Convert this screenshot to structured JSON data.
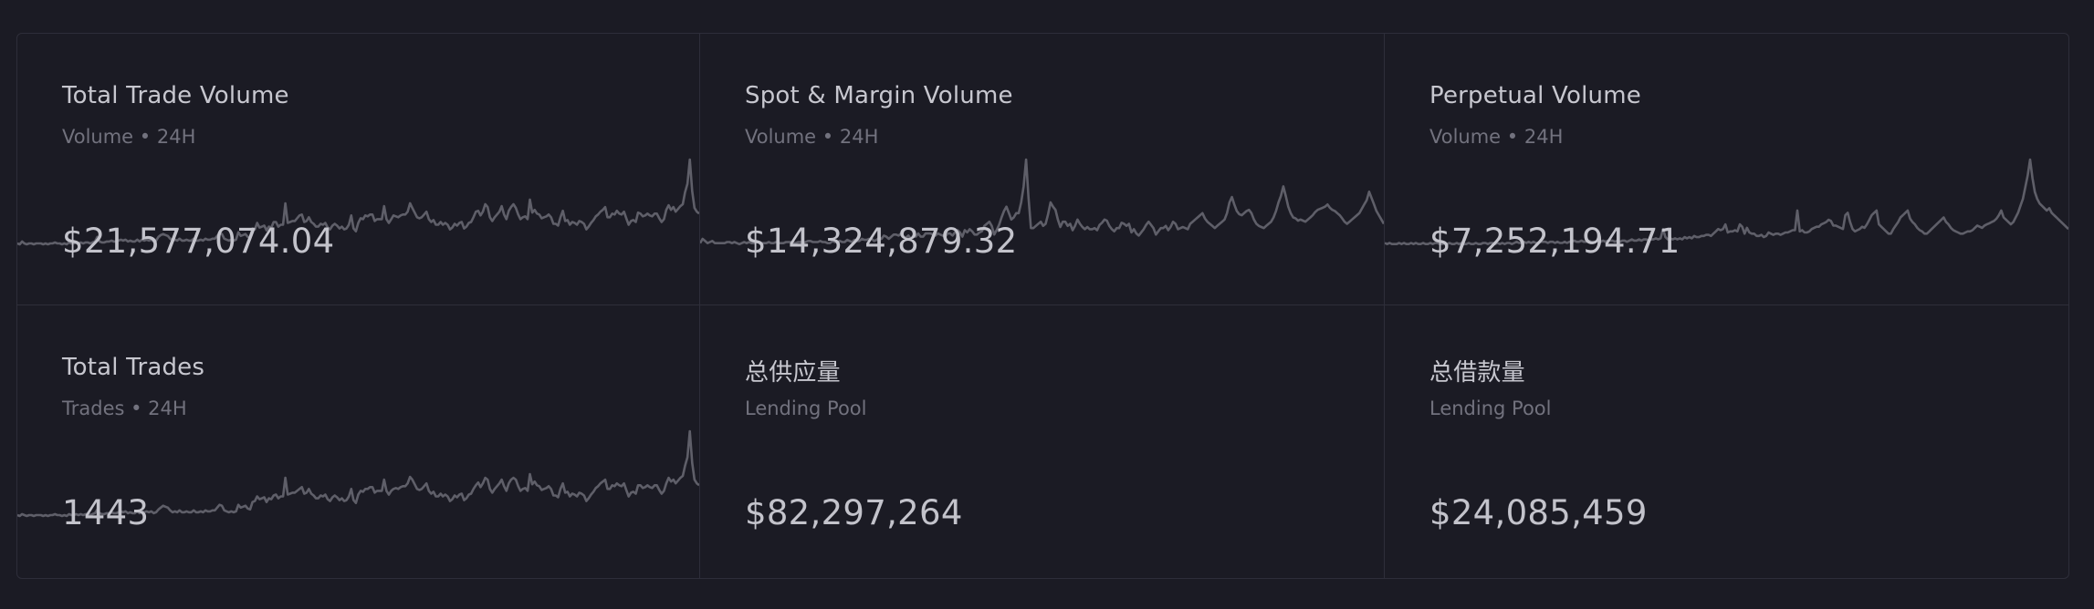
{
  "colors": {
    "background": "#1b1b24",
    "border": "#2e2e3a",
    "title": "#c7c7cf",
    "subtitle": "#72727e",
    "value": "#c3c3cb",
    "sparkline": "#5f5f69"
  },
  "cards": [
    {
      "title": "Total Trade Volume",
      "subtitle": "Volume • 24H",
      "value": "$21,577,074.04",
      "sparkline": [
        2,
        1,
        4,
        2,
        1,
        2,
        2,
        1,
        2,
        2,
        2,
        1,
        2,
        1,
        2,
        2,
        3,
        2,
        2,
        1,
        2,
        1,
        3,
        2,
        2,
        3,
        2,
        3,
        2,
        3,
        3,
        2,
        3,
        4,
        9,
        4,
        3,
        3,
        4,
        4,
        5,
        4,
        4,
        5,
        6,
        5,
        6,
        4,
        5,
        4,
        4,
        6,
        4,
        6,
        5,
        6,
        5,
        6,
        4,
        5,
        9,
        11,
        12,
        11,
        10,
        7,
        5,
        6,
        5,
        7,
        5,
        5,
        6,
        5,
        5,
        7,
        5,
        5,
        6,
        5,
        7,
        6,
        6,
        7,
        7,
        10,
        13,
        12,
        7,
        6,
        5,
        6,
        5,
        6,
        14,
        10,
        11,
        12,
        9,
        8,
        18,
        17,
        24,
        19,
        20,
        21,
        16,
        20,
        19,
        25,
        25,
        20,
        22,
        22,
        45,
        24,
        25,
        26,
        26,
        29,
        32,
        33,
        25,
        26,
        30,
        25,
        23,
        20,
        20,
        23,
        22,
        24,
        19,
        17,
        21,
        23,
        21,
        18,
        20,
        17,
        18,
        22,
        32,
        18,
        15,
        24,
        29,
        28,
        32,
        31,
        33,
        33,
        26,
        28,
        28,
        28,
        42,
        28,
        24,
        28,
        32,
        31,
        30,
        32,
        33,
        33,
        36,
        45,
        40,
        35,
        30,
        29,
        30,
        33,
        36,
        28,
        25,
        27,
        22,
        22,
        25,
        22,
        24,
        22,
        17,
        19,
        23,
        21,
        24,
        25,
        18,
        20,
        24,
        25,
        30,
        36,
        37,
        32,
        36,
        44,
        41,
        30,
        26,
        30,
        33,
        36,
        42,
        33,
        28,
        37,
        41,
        44,
        40,
        33,
        28,
        30,
        31,
        28,
        49,
        35,
        38,
        34,
        33,
        29,
        30,
        31,
        33,
        30,
        23,
        23,
        21,
        30,
        37,
        26,
        27,
        22,
        25,
        24,
        22,
        26,
        25,
        23,
        17,
        20,
        24,
        27,
        31,
        33,
        36,
        38,
        41,
        30,
        30,
        34,
        33,
        37,
        34,
        33,
        36,
        29,
        22,
        26,
        27,
        25,
        35,
        34,
        31,
        32,
        34,
        32,
        31,
        34,
        34,
        29,
        25,
        28,
        38,
        43,
        38,
        41,
        36,
        39,
        42,
        44,
        57,
        66,
        92,
        58,
        40,
        36,
        34
      ]
    },
    {
      "title": "Spot & Margin Volume",
      "subtitle": "Volume • 24H",
      "value": "$14,324,879.32",
      "sparkline": [
        2,
        6,
        4,
        2,
        3,
        4,
        2,
        2,
        2,
        2,
        2,
        3,
        3,
        2,
        3,
        2,
        1,
        2,
        3,
        2,
        3,
        2,
        2,
        3,
        3,
        2,
        2,
        2,
        3,
        2,
        2,
        3,
        2,
        2,
        2,
        3,
        3,
        3,
        2,
        2,
        3,
        3,
        2,
        3,
        4,
        4,
        3,
        3,
        3,
        4,
        3,
        3,
        2,
        2,
        4,
        3,
        3,
        4,
        3,
        3,
        5,
        4,
        3,
        5,
        4,
        4,
        6,
        5,
        5,
        6,
        6,
        4,
        5,
        7,
        6,
        9,
        8,
        6,
        8,
        10,
        10,
        9,
        11,
        8,
        7,
        9,
        6,
        9,
        8,
        11,
        8,
        8,
        11,
        11,
        11,
        10,
        9,
        11,
        10,
        9,
        8,
        11,
        11,
        9,
        12,
        14,
        12,
        8,
        14,
        12,
        15,
        13,
        10,
        10,
        12,
        13,
        18,
        20,
        22,
        18,
        10,
        14,
        19,
        26,
        32,
        36,
        30,
        24,
        26,
        30,
        30,
        40,
        55,
        80,
        45,
        16,
        16,
        18,
        20,
        22,
        18,
        20,
        29,
        40,
        36,
        33,
        24,
        17,
        22,
        22,
        18,
        20,
        14,
        18,
        24,
        20,
        17,
        15,
        17,
        15,
        15,
        16,
        14,
        19,
        21,
        24,
        23,
        18,
        15,
        13,
        16,
        16,
        21,
        20,
        18,
        20,
        12,
        15,
        11,
        9,
        12,
        15,
        19,
        22,
        19,
        16,
        10,
        13,
        16,
        16,
        18,
        14,
        17,
        22,
        20,
        15,
        16,
        17,
        16,
        15,
        20,
        22,
        24,
        26,
        28,
        30,
        25,
        22,
        20,
        18,
        16,
        18,
        20,
        22,
        24,
        30,
        40,
        45,
        38,
        32,
        29,
        28,
        30,
        32,
        33,
        30,
        24,
        20,
        18,
        17,
        16,
        18,
        20,
        22,
        26,
        32,
        40,
        46,
        55,
        46,
        36,
        30,
        26,
        25,
        23,
        24,
        23,
        22,
        24,
        26,
        28,
        31,
        33,
        34,
        35,
        36,
        38,
        35,
        33,
        32,
        30,
        28,
        25,
        22,
        20,
        22,
        24,
        26,
        28,
        30,
        34,
        38,
        42,
        50,
        44,
        38,
        32,
        28,
        24,
        20
      ]
    },
    {
      "title": "Perpetual Volume",
      "subtitle": "Volume • 24H",
      "value": "$7,252,194.71",
      "sparkline": [
        2,
        1,
        2,
        1,
        1,
        1,
        2,
        1,
        2,
        1,
        1,
        2,
        1,
        2,
        1,
        1,
        2,
        1,
        1,
        2,
        1,
        2,
        2,
        1,
        1,
        2,
        1,
        2,
        1,
        1,
        2,
        1,
        2,
        1,
        1,
        2,
        1,
        1,
        2,
        1,
        1,
        2,
        2,
        1,
        2,
        2,
        1,
        2,
        1,
        2,
        1,
        2,
        2,
        1,
        2,
        3,
        2,
        2,
        3,
        2,
        3,
        2,
        3,
        2,
        2,
        3,
        3,
        3,
        2,
        3,
        3,
        2,
        3,
        2,
        2,
        3,
        2,
        3,
        3,
        4,
        3,
        3,
        4,
        3,
        3,
        4,
        3,
        3,
        3,
        4,
        3,
        4,
        3,
        4,
        4,
        4,
        3,
        4,
        3,
        4,
        4,
        3,
        4,
        5,
        4,
        4,
        5,
        4,
        5,
        5,
        4,
        5,
        5,
        6,
        5,
        6,
        14,
        7,
        5,
        6,
        5,
        6,
        5,
        6,
        5,
        7,
        6,
        7,
        6,
        8,
        7,
        7,
        8,
        8,
        9,
        9,
        8,
        10,
        12,
        14,
        13,
        14,
        18,
        11,
        12,
        12,
        13,
        12,
        18,
        16,
        10,
        15,
        11,
        10,
        10,
        8,
        8,
        9,
        7,
        8,
        11,
        10,
        9,
        10,
        10,
        9,
        10,
        11,
        11,
        12,
        13,
        13,
        30,
        12,
        13,
        11,
        11,
        12,
        14,
        15,
        16,
        16,
        18,
        19,
        20,
        22,
        21,
        17,
        17,
        16,
        15,
        14,
        26,
        28,
        20,
        14,
        12,
        13,
        14,
        16,
        15,
        18,
        22,
        26,
        28,
        30,
        18,
        16,
        14,
        12,
        10,
        10,
        14,
        17,
        20,
        24,
        26,
        28,
        30,
        23,
        20,
        18,
        15,
        13,
        12,
        10,
        10,
        12,
        14,
        16,
        18,
        20,
        22,
        24,
        20,
        18,
        15,
        13,
        12,
        11,
        10,
        10,
        11,
        12,
        12,
        13,
        15,
        17,
        16,
        15,
        17,
        18,
        19,
        20,
        21,
        23,
        26,
        30,
        24,
        22,
        20,
        18,
        20,
        24,
        28,
        34,
        40,
        50,
        60,
        74,
        58,
        46,
        40,
        36,
        34,
        32,
        30,
        32,
        28,
        26,
        24,
        22,
        20,
        18,
        16,
        14
      ]
    },
    {
      "title": "Total Trades",
      "subtitle": "Trades • 24H",
      "value": "1443",
      "sparkline": [
        2,
        1,
        3,
        2,
        1,
        2,
        2,
        1,
        2,
        2,
        2,
        1,
        2,
        1,
        2,
        2,
        3,
        2,
        2,
        1,
        2,
        1,
        3,
        2,
        2,
        3,
        2,
        3,
        2,
        3,
        3,
        2,
        3,
        4,
        8,
        4,
        3,
        3,
        4,
        4,
        5,
        4,
        4,
        5,
        6,
        5,
        6,
        4,
        5,
        4,
        4,
        6,
        4,
        6,
        5,
        6,
        5,
        6,
        4,
        5,
        8,
        10,
        12,
        11,
        10,
        7,
        5,
        6,
        5,
        7,
        5,
        5,
        6,
        5,
        5,
        7,
        5,
        5,
        6,
        5,
        7,
        6,
        6,
        7,
        7,
        10,
        13,
        12,
        7,
        6,
        5,
        6,
        5,
        6,
        13,
        10,
        11,
        12,
        9,
        8,
        16,
        17,
        22,
        19,
        20,
        21,
        16,
        20,
        19,
        23,
        24,
        20,
        22,
        22,
        42,
        24,
        25,
        26,
        26,
        28,
        30,
        32,
        25,
        26,
        30,
        25,
        23,
        20,
        20,
        23,
        22,
        24,
        19,
        17,
        21,
        23,
        21,
        18,
        20,
        17,
        18,
        22,
        30,
        18,
        15,
        24,
        28,
        27,
        30,
        30,
        32,
        32,
        26,
        28,
        28,
        28,
        40,
        28,
        24,
        28,
        30,
        31,
        30,
        32,
        33,
        33,
        36,
        43,
        40,
        35,
        30,
        29,
        30,
        33,
        36,
        28,
        25,
        27,
        22,
        22,
        25,
        22,
        24,
        22,
        17,
        19,
        23,
        21,
        24,
        25,
        18,
        20,
        24,
        25,
        30,
        34,
        37,
        32,
        36,
        42,
        40,
        30,
        26,
        30,
        33,
        36,
        40,
        33,
        28,
        36,
        40,
        42,
        40,
        33,
        28,
        30,
        31,
        28,
        46,
        35,
        38,
        34,
        33,
        29,
        30,
        31,
        33,
        30,
        23,
        23,
        21,
        30,
        36,
        26,
        27,
        22,
        25,
        24,
        22,
        26,
        25,
        23,
        17,
        20,
        24,
        27,
        31,
        33,
        36,
        38,
        40,
        30,
        30,
        34,
        33,
        36,
        34,
        33,
        36,
        29,
        22,
        26,
        27,
        25,
        34,
        34,
        31,
        32,
        34,
        32,
        31,
        34,
        34,
        29,
        25,
        28,
        36,
        42,
        38,
        40,
        36,
        39,
        42,
        44,
        55,
        64,
        92,
        58,
        40,
        36,
        34
      ]
    },
    {
      "title": "总供应量",
      "subtitle": "Lending Pool",
      "value": "$82,297,264",
      "sparkline": []
    },
    {
      "title": "总借款量",
      "subtitle": "Lending Pool",
      "value": "$24,085,459",
      "sparkline": []
    }
  ]
}
